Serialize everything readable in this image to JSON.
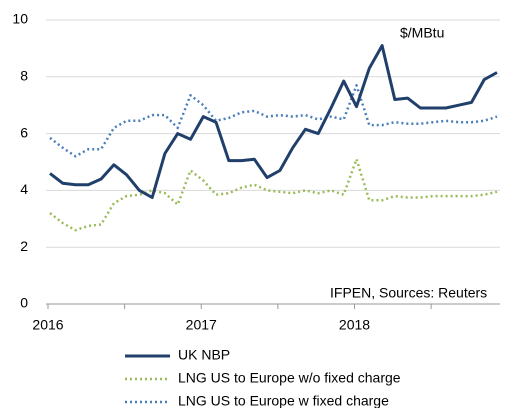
{
  "chart_data": {
    "type": "line",
    "annotations": [
      "$/MBtu",
      "IFPEN, Sources: Reuters"
    ],
    "categories": [
      "2016",
      null,
      null,
      null,
      null,
      null,
      null,
      null,
      null,
      null,
      null,
      null,
      "2017",
      null,
      null,
      null,
      null,
      null,
      null,
      null,
      null,
      null,
      null,
      null,
      "2018",
      null,
      null,
      null,
      null,
      null,
      null,
      null,
      null,
      null,
      null,
      null
    ],
    "series": [
      {
        "name": "UK NBP",
        "color": "#203f6b",
        "style": "solid",
        "values": [
          4.6,
          4.25,
          4.2,
          4.2,
          4.4,
          4.9,
          4.55,
          4.0,
          3.75,
          5.3,
          6.0,
          5.8,
          6.6,
          6.4,
          5.05,
          5.05,
          5.1,
          4.45,
          4.7,
          5.5,
          6.15,
          6.0,
          6.9,
          7.85,
          6.95,
          8.3,
          9.1,
          7.2,
          7.25,
          6.9,
          6.9,
          6.9,
          7.0,
          7.1,
          7.9,
          8.15
        ]
      },
      {
        "name": "LNG US to Europe w/o fixed charge",
        "color": "#9bbb59",
        "style": "dotted",
        "values": [
          3.2,
          2.85,
          2.6,
          2.75,
          2.8,
          3.55,
          3.8,
          3.85,
          4.0,
          3.9,
          3.5,
          4.7,
          4.35,
          3.85,
          3.9,
          4.1,
          4.2,
          4.0,
          3.95,
          3.9,
          4.0,
          3.9,
          4.0,
          3.85,
          5.1,
          3.65,
          3.65,
          3.8,
          3.75,
          3.75,
          3.8,
          3.8,
          3.8,
          3.8,
          3.85,
          3.95
        ]
      },
      {
        "name": "LNG US to Europe w fixed charge",
        "color": "#4a7ebb",
        "style": "dotted",
        "values": [
          5.85,
          5.5,
          5.2,
          5.45,
          5.45,
          6.2,
          6.45,
          6.45,
          6.65,
          6.65,
          6.2,
          7.35,
          7.0,
          6.45,
          6.55,
          6.75,
          6.8,
          6.6,
          6.65,
          6.6,
          6.65,
          6.5,
          6.6,
          6.5,
          7.7,
          6.3,
          6.3,
          6.4,
          6.35,
          6.35,
          6.4,
          6.45,
          6.4,
          6.4,
          6.45,
          6.6
        ]
      }
    ],
    "ylim": [
      0,
      10
    ],
    "yticks": [
      0,
      2,
      4,
      6,
      8,
      10
    ],
    "grid": true
  }
}
